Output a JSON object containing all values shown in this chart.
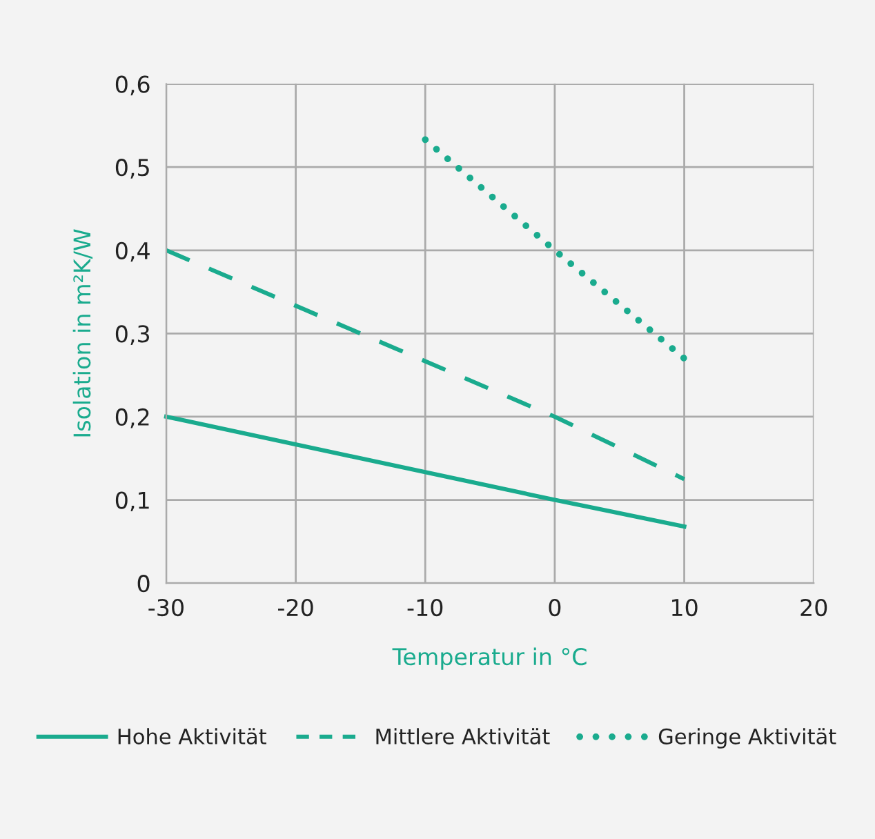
{
  "chart_data": {
    "type": "line",
    "xlabel": "Temperatur in °C",
    "ylabel": "Isolation in m²K/W",
    "series": [
      {
        "name": "Hohe Aktivität",
        "color": "#1aab8e",
        "x": [
          -30,
          0,
          10
        ],
        "values": [
          0.2,
          0.1,
          0.068
        ],
        "line_style": "solid"
      },
      {
        "name": "Mittlere Aktivität",
        "color": "#1aab8e",
        "x": [
          -30,
          0,
          10
        ],
        "values": [
          0.4,
          0.2,
          0.125
        ],
        "line_style": "dashed"
      },
      {
        "name": "Geringe Aktivität",
        "color": "#1aab8e",
        "x": [
          -10,
          0,
          10
        ],
        "values": [
          0.533,
          0.4,
          0.27
        ],
        "line_style": "dotted"
      }
    ],
    "xlim": [
      -30,
      20
    ],
    "xticks": [
      -30,
      -20,
      -10,
      0,
      10,
      20
    ],
    "ylim": [
      0,
      0.6
    ],
    "yticks": [
      {
        "value": 0,
        "label": "0"
      },
      {
        "value": 0.1,
        "label": "0,1"
      },
      {
        "value": 0.2,
        "label": "0,2"
      },
      {
        "value": 0.3,
        "label": "0,3"
      },
      {
        "value": 0.4,
        "label": "0,4"
      },
      {
        "value": 0.5,
        "label": "0,5"
      },
      {
        "value": 0.6,
        "label": "0,6"
      }
    ],
    "grid": true,
    "legend": "bottom"
  }
}
